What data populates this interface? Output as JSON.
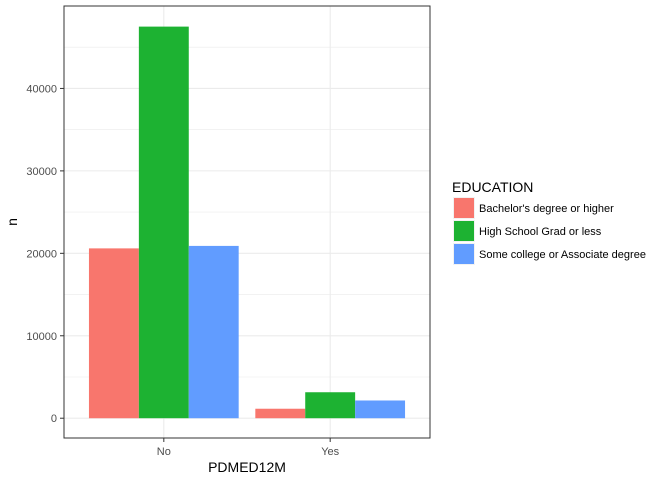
{
  "chart_data": {
    "type": "bar",
    "title": "",
    "xlabel": "PDMED12M",
    "ylabel": "n",
    "categories": [
      "No",
      "Yes"
    ],
    "ylim": [
      -2400,
      50000
    ],
    "y_ticks": [
      0,
      10000,
      20000,
      30000,
      40000
    ],
    "y_tick_labels": [
      "0",
      "10000",
      "20000",
      "30000",
      "40000"
    ],
    "grid": true,
    "legend_position": "right",
    "legend_title": "EDUCATION",
    "series": [
      {
        "name": "Bachelor's degree or higher",
        "color": "#F8766D",
        "values": [
          20600,
          1150
        ]
      },
      {
        "name": "High School Grad or less",
        "color": "#1DB232",
        "values": [
          47500,
          3150
        ]
      },
      {
        "name": "Some college or Associate degree",
        "color": "#619CFF",
        "values": [
          20900,
          2150
        ]
      }
    ]
  }
}
